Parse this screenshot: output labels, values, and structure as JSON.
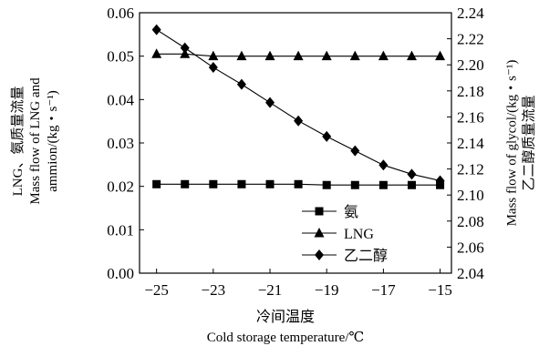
{
  "chart_data": {
    "type": "line",
    "x": [
      -25,
      -24,
      -23,
      -22,
      -21,
      -20,
      -19,
      -18,
      -17,
      -16,
      -15
    ],
    "xticks": [
      -25,
      -23,
      -21,
      -19,
      -17,
      -15
    ],
    "xlim": [
      -25.6,
      -14.6
    ],
    "xlabel_cn": "冷间温度",
    "xlabel_en": "Cold storage temperature/℃",
    "ylim_left": [
      0,
      0.06
    ],
    "yticks_left": [
      "0.00",
      "0.01",
      "0.02",
      "0.03",
      "0.04",
      "0.05",
      "0.06"
    ],
    "ylabel_left_lines": [
      "LNG、氨质量流量",
      "Mass flow of LNG and",
      "ammion/(kg・s⁻¹)"
    ],
    "ylim_right": [
      2.04,
      2.24
    ],
    "yticks_right": [
      "2.04",
      "2.06",
      "2.08",
      "2.10",
      "2.12",
      "2.14",
      "2.16",
      "2.18",
      "2.20",
      "2.22",
      "2.24"
    ],
    "ylabel_right_lines": [
      "Mass flow of glycol/(kg・s⁻¹)",
      "乙二醇质量流量"
    ],
    "series": [
      {
        "name": "氨",
        "axis": "left",
        "marker": "square",
        "values": [
          0.0205,
          0.0205,
          0.0205,
          0.0205,
          0.0205,
          0.0205,
          0.0203,
          0.0203,
          0.0203,
          0.0203,
          0.0203
        ]
      },
      {
        "name": "LNG",
        "axis": "left",
        "marker": "triangle",
        "values": [
          0.0505,
          0.0505,
          0.05,
          0.05,
          0.05,
          0.05,
          0.05,
          0.05,
          0.05,
          0.05,
          0.05
        ]
      },
      {
        "name": "乙二醇",
        "axis": "right",
        "marker": "diamond",
        "values": [
          2.227,
          2.213,
          2.198,
          2.185,
          2.171,
          2.157,
          2.145,
          2.134,
          2.123,
          2.116,
          2.111
        ]
      }
    ],
    "legend_position": "bottom-right",
    "grid": false
  }
}
